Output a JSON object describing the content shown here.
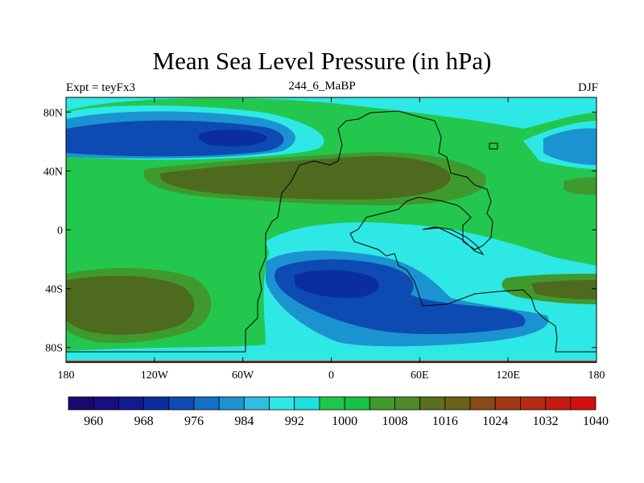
{
  "title": "Mean Sea Level Pressure (in hPa)",
  "left_string": "Expt = teyFx3",
  "center_string": "244_6_MaBP",
  "right_string": "DJF",
  "chart_data": {
    "type": "heatmap",
    "title": "Mean Sea Level Pressure (in hPa)",
    "units": "hPa",
    "x_ticks": [
      "180",
      "120W",
      "60W",
      "0",
      "60E",
      "120E",
      "180"
    ],
    "y_ticks": [
      "80N",
      "40N",
      "0",
      "40S",
      "80S"
    ],
    "colorbar": {
      "labels": [
        "960",
        "968",
        "976",
        "984",
        "992",
        "1000",
        "1008",
        "1016",
        "1024",
        "1032",
        "1040"
      ],
      "colors": [
        "#1a0a6e",
        "#150f7f",
        "#0f1b8f",
        "#0a2ea0",
        "#0d4bb3",
        "#1470c4",
        "#1c93d1",
        "#2ebfe0",
        "#2ee8e6",
        "#1fe0e0",
        "#1fc84b",
        "#17c246",
        "#3f9a2d",
        "#4f8a2a",
        "#5a7020",
        "#6a6219",
        "#8a4a16",
        "#a03a14",
        "#b52a12",
        "#c41a10",
        "#d40f0f"
      ]
    },
    "background_color": "#23c74e",
    "field_colors": {
      "land_high": "#4d6a1f",
      "mid_high": "#3f9a2d",
      "subtropical": "#23c74e",
      "low_light": "#2ee8e6",
      "low_medium": "#1c93d1",
      "low_deep": "#0d4bb3",
      "low_core": "#0a2ea0"
    }
  }
}
